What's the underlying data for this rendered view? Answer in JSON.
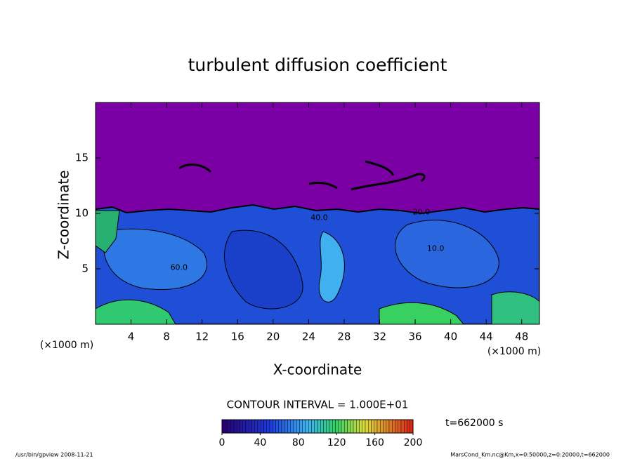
{
  "chart_data": {
    "type": "contour",
    "title": "turbulent diffusion coefficient",
    "xlabel": "X-coordinate",
    "ylabel": "Z-coordinate",
    "x_unit": "(×1000 m)",
    "y_unit": "(×1000 m)",
    "xlim": [
      0,
      50
    ],
    "ylim": [
      0,
      20
    ],
    "xticks": [
      4,
      8,
      12,
      16,
      20,
      24,
      28,
      32,
      36,
      40,
      44,
      48
    ],
    "yticks": [
      5,
      10,
      15
    ],
    "contour_interval": "CONTOUR INTERVAL = 1.000E+01",
    "time_label": "t=662000 s",
    "contour_labels": [
      {
        "text": "20.0",
        "x": 36.7,
        "z": 10.1
      },
      {
        "text": "60.0",
        "x": 9.4,
        "z": 5.1
      },
      {
        "text": "40.0",
        "x": 25.2,
        "z": 9.6
      },
      {
        "text": "10.0",
        "x": 38.3,
        "z": 6.8
      }
    ],
    "colorbar": {
      "lim": [
        0,
        200
      ],
      "ticks": [
        0,
        40,
        80,
        120,
        160,
        200
      ]
    },
    "footer_left": "/usr/bin/gpview  2008-11-21",
    "footer_right": "MarsCond_Km.nc@Km,x=0:50000,z=0:20000,t=662000"
  }
}
